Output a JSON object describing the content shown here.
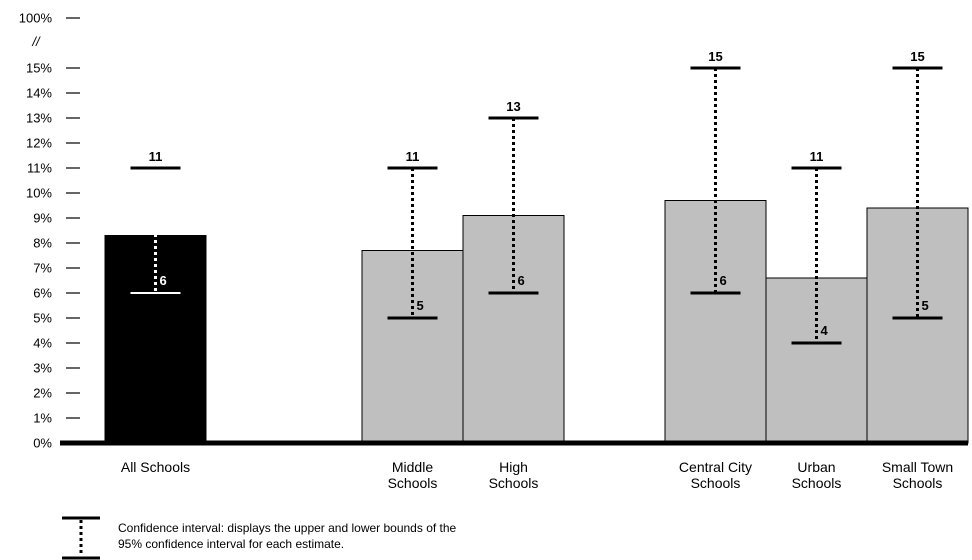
{
  "chart_data": {
    "type": "bar",
    "y_tick_labels": [
      "0%",
      "1%",
      "2%",
      "3%",
      "4%",
      "5%",
      "6%",
      "7%",
      "8%",
      "9%",
      "10%",
      "11%",
      "12%",
      "13%",
      "14%",
      "15%"
    ],
    "y_top_label": "100%",
    "y_break_symbol": "//",
    "ylim": [
      0,
      15
    ],
    "y_break": true,
    "groups": [
      {
        "categories": [
          {
            "label_lines": [
              "All Schools"
            ],
            "value": 8.3,
            "ci_low": 6,
            "ci_high": 11,
            "ci_low_label": "6",
            "ci_high_label": "11",
            "color": "#000000"
          }
        ]
      },
      {
        "categories": [
          {
            "label_lines": [
              "Middle",
              "Schools"
            ],
            "value": 7.7,
            "ci_low": 5,
            "ci_high": 11,
            "ci_low_label": "5",
            "ci_high_label": "11",
            "color": "#bfbfbf"
          },
          {
            "label_lines": [
              "High",
              "Schools"
            ],
            "value": 9.1,
            "ci_low": 6,
            "ci_high": 13,
            "ci_low_label": "6",
            "ci_high_label": "13",
            "color": "#bfbfbf"
          }
        ]
      },
      {
        "categories": [
          {
            "label_lines": [
              "Central City",
              "Schools"
            ],
            "value": 9.7,
            "ci_low": 6,
            "ci_high": 15,
            "ci_low_label": "6",
            "ci_high_label": "15",
            "color": "#bfbfbf"
          },
          {
            "label_lines": [
              "Urban",
              "Schools"
            ],
            "value": 6.6,
            "ci_low": 4,
            "ci_high": 11,
            "ci_low_label": "4",
            "ci_high_label": "11",
            "color": "#bfbfbf"
          },
          {
            "label_lines": [
              "Small Town",
              "Schools"
            ],
            "value": 9.4,
            "ci_low": 5,
            "ci_high": 15,
            "ci_low_label": "5",
            "ci_high_label": "15",
            "color": "#bfbfbf"
          }
        ]
      }
    ],
    "legend": {
      "lines": [
        "Confidence interval:  displays the upper and lower bounds of the",
        "95% confidence interval for each estimate."
      ],
      "placement": "bottom-left"
    },
    "grid": false
  }
}
